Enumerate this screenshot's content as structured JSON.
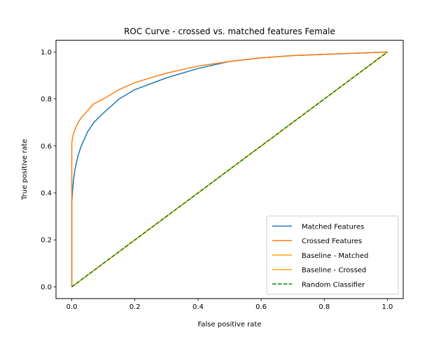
{
  "chart_data": {
    "type": "line",
    "title": "ROC Curve - crossed vs. matched features Female",
    "xlabel": "False positive rate",
    "ylabel": "True positive rate",
    "xlim": [
      -0.05,
      1.05
    ],
    "ylim": [
      -0.05,
      1.05
    ],
    "x_ticks": [
      0.0,
      0.2,
      0.4,
      0.6,
      0.8,
      1.0
    ],
    "x_tick_labels": [
      "0.0",
      "0.2",
      "0.4",
      "0.6",
      "0.8",
      "1.0"
    ],
    "y_ticks": [
      0.0,
      0.2,
      0.4,
      0.6,
      0.8,
      1.0
    ],
    "y_tick_labels": [
      "0.0",
      "0.2",
      "0.4",
      "0.6",
      "0.8",
      "1.0"
    ],
    "grid": false,
    "legend_position": "lower-right",
    "series": [
      {
        "name": "Matched Features",
        "color": "#1f77b4",
        "style": "solid",
        "x": [
          0,
          0,
          0.002,
          0.005,
          0.01,
          0.02,
          0.03,
          0.05,
          0.07,
          0.1,
          0.15,
          0.2,
          0.3,
          0.4,
          0.5,
          0.6,
          0.7,
          0.8,
          0.9,
          1.0
        ],
        "y": [
          0,
          0.36,
          0.4,
          0.45,
          0.5,
          0.56,
          0.6,
          0.66,
          0.7,
          0.74,
          0.8,
          0.84,
          0.89,
          0.93,
          0.96,
          0.975,
          0.985,
          0.99,
          0.995,
          1.0
        ]
      },
      {
        "name": "Crossed Features",
        "color": "#ff7f0e",
        "style": "solid",
        "x": [
          0,
          0,
          0.002,
          0.005,
          0.01,
          0.02,
          0.03,
          0.05,
          0.07,
          0.1,
          0.15,
          0.2,
          0.3,
          0.4,
          0.5,
          0.6,
          0.7,
          0.8,
          0.9,
          1.0
        ],
        "y": [
          0,
          0.61,
          0.63,
          0.65,
          0.67,
          0.7,
          0.72,
          0.75,
          0.78,
          0.8,
          0.84,
          0.87,
          0.91,
          0.94,
          0.96,
          0.975,
          0.985,
          0.99,
          0.995,
          1.0
        ]
      },
      {
        "name": "Baseline - Matched",
        "color": "#ffa500",
        "style": "solid",
        "x": [
          0,
          1
        ],
        "y": [
          0,
          1
        ]
      },
      {
        "name": "Baseline - Crossed",
        "color": "#ffa500",
        "style": "solid",
        "x": [
          0,
          1
        ],
        "y": [
          0,
          1
        ]
      },
      {
        "name": "Random Classifier",
        "color": "#008000",
        "style": "dashed",
        "x": [
          0,
          1
        ],
        "y": [
          0,
          1
        ]
      }
    ]
  }
}
